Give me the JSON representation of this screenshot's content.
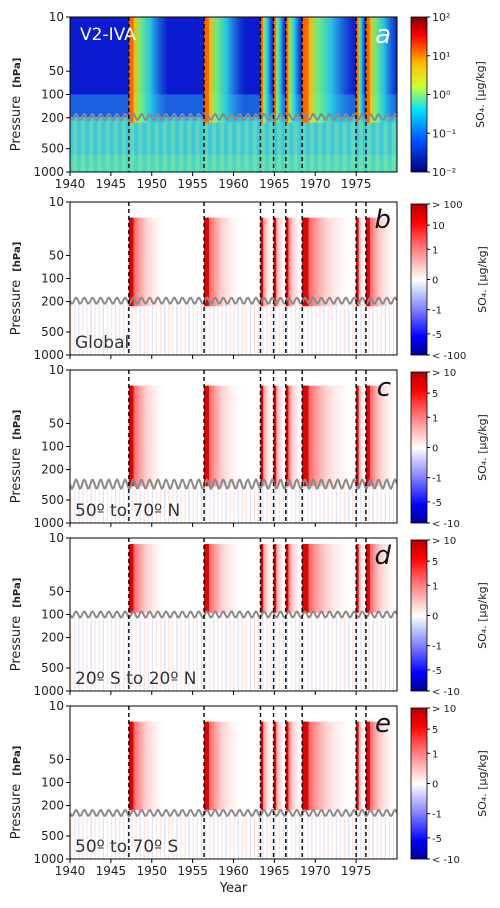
{
  "figure": {
    "xlabel": "Year",
    "xticks": [
      1940,
      1945,
      1950,
      1955,
      1960,
      1965,
      1970,
      1975
    ],
    "xlim": [
      1940,
      1980
    ],
    "eruption_years": [
      1947.2,
      1956.4,
      1963.3,
      1964.9,
      1966.4,
      1968.4,
      1975.0,
      1976.2
    ],
    "tropopause_note": "gray wavy line"
  },
  "chart_data": [
    {
      "type": "heatmap",
      "panel_letter": "a",
      "inset_label": "V2-IVA",
      "ylabel": "Pressure",
      "yunit": "[hPa]",
      "y_scale": "log",
      "ylim": [
        1000,
        10
      ],
      "yticks": [
        "10",
        "50",
        "100",
        "200",
        "500",
        "1000"
      ],
      "ytick_values": [
        10,
        50,
        100,
        200,
        500,
        1000
      ],
      "tropopause_hpa": 195,
      "colorbar": {
        "label": "SO₄. [μg/kg]",
        "scale": "log",
        "range": [
          0.01,
          100
        ],
        "tick_labels": [
          "10²",
          "10¹",
          "10⁰",
          "10⁻¹",
          "10⁻²"
        ],
        "tick_values": [
          100,
          10,
          1,
          0.1,
          0.01
        ],
        "colormap": "jet"
      }
    },
    {
      "type": "heatmap",
      "panel_letter": "b",
      "inset_label": "Global",
      "ylabel": "Pressure",
      "yunit": "[hPa]",
      "y_scale": "log",
      "ylim": [
        1000,
        10
      ],
      "yticks": [
        "10",
        "50",
        "100",
        "200",
        "500",
        "1000"
      ],
      "ytick_values": [
        10,
        50,
        100,
        200,
        500,
        1000
      ],
      "tropopause_hpa": 195,
      "colorbar": {
        "label": "SO₄. [μg/kg]",
        "scale": "symlog",
        "range": [
          -100,
          100
        ],
        "tick_labels": [
          "> 100",
          "10",
          "1",
          "0",
          "-1",
          "-5",
          "< -100"
        ],
        "tick_values": [
          100,
          10,
          1,
          0,
          -1,
          -5,
          -100
        ],
        "colormap": "bwr"
      }
    },
    {
      "type": "heatmap",
      "panel_letter": "c",
      "inset_label": "50º to 70º N",
      "ylabel": "Pressure",
      "yunit": "[hPa]",
      "y_scale": "log",
      "ylim": [
        1000,
        10
      ],
      "yticks": [
        "10",
        "50",
        "100",
        "200",
        "500",
        "1000"
      ],
      "ytick_values": [
        10,
        50,
        100,
        200,
        500,
        1000
      ],
      "tropopause_hpa": 310,
      "colorbar": {
        "label": "SO₄. [μg/kg]",
        "scale": "symlog",
        "range": [
          -10,
          10
        ],
        "tick_labels": [
          "> 10",
          "5",
          "1",
          "0",
          "-1",
          "-5",
          "< -10"
        ],
        "tick_values": [
          10,
          5,
          1,
          0,
          -1,
          -5,
          -10
        ],
        "colormap": "bwr"
      }
    },
    {
      "type": "heatmap",
      "panel_letter": "d",
      "inset_label": "20º S to 20º N",
      "ylabel": "Pressure",
      "yunit": "[hPa]",
      "y_scale": "log",
      "ylim": [
        1000,
        10
      ],
      "yticks": [
        "10",
        "50",
        "100",
        "200",
        "500",
        "1000"
      ],
      "ytick_values": [
        10,
        50,
        100,
        200,
        500,
        1000
      ],
      "tropopause_hpa": 100,
      "colorbar": {
        "label": "SO₄. [μg/kg]",
        "scale": "symlog",
        "range": [
          -10,
          10
        ],
        "tick_labels": [
          "> 10",
          "5",
          "1",
          "0",
          "-1",
          "-5",
          "< -10"
        ],
        "tick_values": [
          10,
          5,
          1,
          0,
          -1,
          -5,
          -10
        ],
        "colormap": "bwr"
      }
    },
    {
      "type": "heatmap",
      "panel_letter": "e",
      "inset_label": "50º to 70º S",
      "ylabel": "Pressure",
      "yunit": "[hPa]",
      "y_scale": "log",
      "ylim": [
        1000,
        10
      ],
      "yticks": [
        "10",
        "50",
        "100",
        "200",
        "500",
        "1000"
      ],
      "ytick_values": [
        10,
        50,
        100,
        200,
        500,
        1000
      ],
      "tropopause_hpa": 250,
      "colorbar": {
        "label": "SO₄. [μg/kg]",
        "scale": "symlog",
        "range": [
          -10,
          10
        ],
        "tick_labels": [
          "> 10",
          "5",
          "1",
          "0",
          "-1",
          "-5",
          "< -10"
        ],
        "tick_values": [
          10,
          5,
          1,
          0,
          -1,
          -5,
          -10
        ],
        "colormap": "bwr"
      }
    }
  ],
  "colors": {
    "jet_background": "#0a1bd0",
    "jet_troposphere": "#3ec8d8",
    "red_strong": "#d40000",
    "tropopause_line": "#8a8a8a",
    "dashed_line": "#000000"
  }
}
